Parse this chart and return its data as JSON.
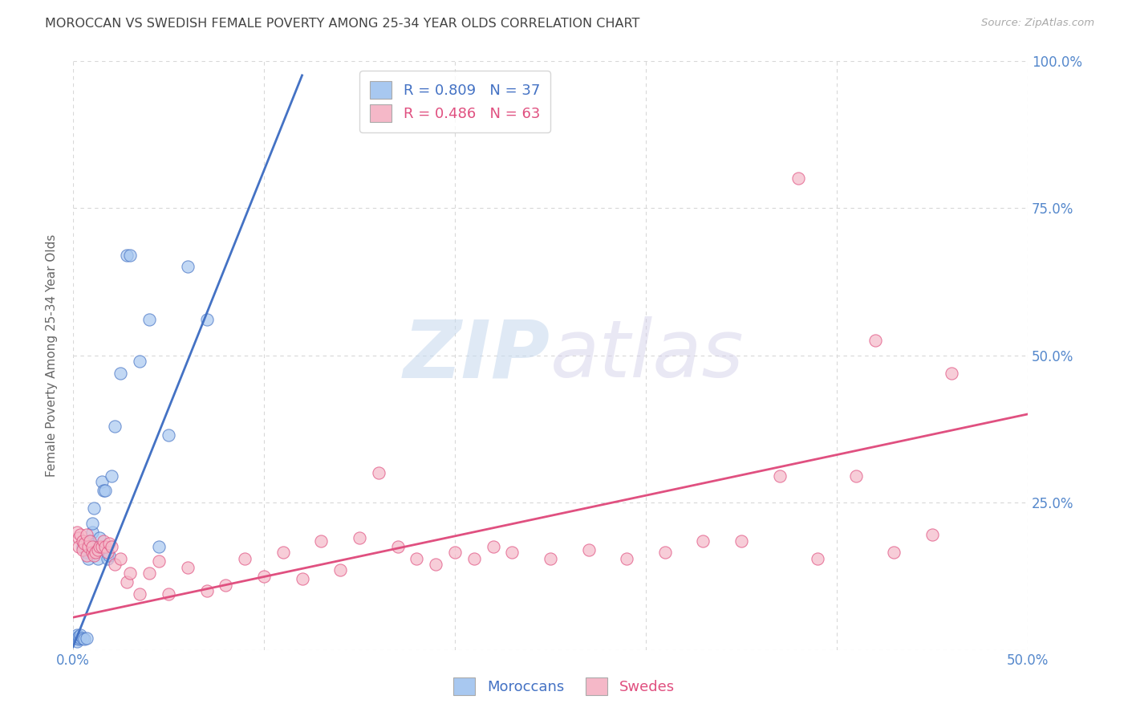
{
  "title": "MOROCCAN VS SWEDISH FEMALE POVERTY AMONG 25-34 YEAR OLDS CORRELATION CHART",
  "source": "Source: ZipAtlas.com",
  "ylabel": "Female Poverty Among 25-34 Year Olds",
  "xlim": [
    0.0,
    0.5
  ],
  "ylim": [
    0.0,
    1.0
  ],
  "xticks": [
    0.0,
    0.1,
    0.2,
    0.3,
    0.4,
    0.5
  ],
  "xticklabels": [
    "0.0%",
    "",
    "",
    "",
    "",
    "50.0%"
  ],
  "yticks": [
    0.0,
    0.25,
    0.5,
    0.75,
    1.0
  ],
  "yticklabels_right": [
    "",
    "25.0%",
    "50.0%",
    "75.0%",
    "100.0%"
  ],
  "moroccan_color": "#a8c8f0",
  "swedish_color": "#f5b8c8",
  "moroccan_R": 0.809,
  "moroccan_N": 37,
  "swedish_R": 0.486,
  "swedish_N": 63,
  "moroccan_line_color": "#4472c4",
  "swedish_line_color": "#e05080",
  "legend_moroccan_label": "R = 0.809   N = 37",
  "legend_swedish_label": "R = 0.486   N = 63",
  "moroccan_scatter_x": [
    0.001,
    0.002,
    0.002,
    0.003,
    0.003,
    0.004,
    0.004,
    0.005,
    0.005,
    0.006,
    0.007,
    0.007,
    0.008,
    0.008,
    0.009,
    0.01,
    0.01,
    0.011,
    0.012,
    0.013,
    0.014,
    0.015,
    0.016,
    0.017,
    0.018,
    0.019,
    0.02,
    0.022,
    0.025,
    0.028,
    0.03,
    0.035,
    0.04,
    0.045,
    0.05,
    0.06,
    0.07
  ],
  "moroccan_scatter_y": [
    0.02,
    0.015,
    0.025,
    0.018,
    0.022,
    0.02,
    0.025,
    0.175,
    0.02,
    0.018,
    0.165,
    0.02,
    0.155,
    0.18,
    0.185,
    0.2,
    0.215,
    0.24,
    0.17,
    0.155,
    0.19,
    0.285,
    0.27,
    0.27,
    0.155,
    0.16,
    0.295,
    0.38,
    0.47,
    0.67,
    0.67,
    0.49,
    0.56,
    0.175,
    0.365,
    0.65,
    0.56
  ],
  "swedish_scatter_x": [
    0.002,
    0.003,
    0.003,
    0.004,
    0.005,
    0.005,
    0.006,
    0.007,
    0.007,
    0.008,
    0.009,
    0.01,
    0.01,
    0.011,
    0.012,
    0.013,
    0.014,
    0.015,
    0.016,
    0.017,
    0.018,
    0.019,
    0.02,
    0.022,
    0.025,
    0.028,
    0.03,
    0.035,
    0.04,
    0.045,
    0.05,
    0.06,
    0.07,
    0.08,
    0.09,
    0.1,
    0.11,
    0.12,
    0.13,
    0.14,
    0.15,
    0.16,
    0.17,
    0.18,
    0.19,
    0.2,
    0.21,
    0.22,
    0.23,
    0.25,
    0.27,
    0.29,
    0.31,
    0.33,
    0.35,
    0.37,
    0.39,
    0.41,
    0.43,
    0.45,
    0.38,
    0.42,
    0.46
  ],
  "swedish_scatter_y": [
    0.2,
    0.19,
    0.175,
    0.195,
    0.185,
    0.17,
    0.18,
    0.16,
    0.195,
    0.175,
    0.185,
    0.165,
    0.175,
    0.16,
    0.165,
    0.17,
    0.175,
    0.175,
    0.185,
    0.175,
    0.165,
    0.18,
    0.175,
    0.145,
    0.155,
    0.115,
    0.13,
    0.095,
    0.13,
    0.15,
    0.095,
    0.14,
    0.1,
    0.11,
    0.155,
    0.125,
    0.165,
    0.12,
    0.185,
    0.135,
    0.19,
    0.3,
    0.175,
    0.155,
    0.145,
    0.165,
    0.155,
    0.175,
    0.165,
    0.155,
    0.17,
    0.155,
    0.165,
    0.185,
    0.185,
    0.295,
    0.155,
    0.295,
    0.165,
    0.195,
    0.8,
    0.525,
    0.47
  ],
  "moroccan_trendline": [
    0.0,
    0.12
  ],
  "moroccan_trendline_y": [
    0.005,
    0.975
  ],
  "swedish_trendline": [
    0.0,
    0.5
  ],
  "swedish_trendline_y": [
    0.055,
    0.4
  ],
  "watermark_zip": "ZIP",
  "watermark_atlas": "atlas",
  "background_color": "#ffffff",
  "grid_color": "#d8d8d8",
  "title_color": "#444444",
  "axis_label_color": "#666666",
  "tick_label_color": "#5588cc",
  "source_color": "#aaaaaa"
}
